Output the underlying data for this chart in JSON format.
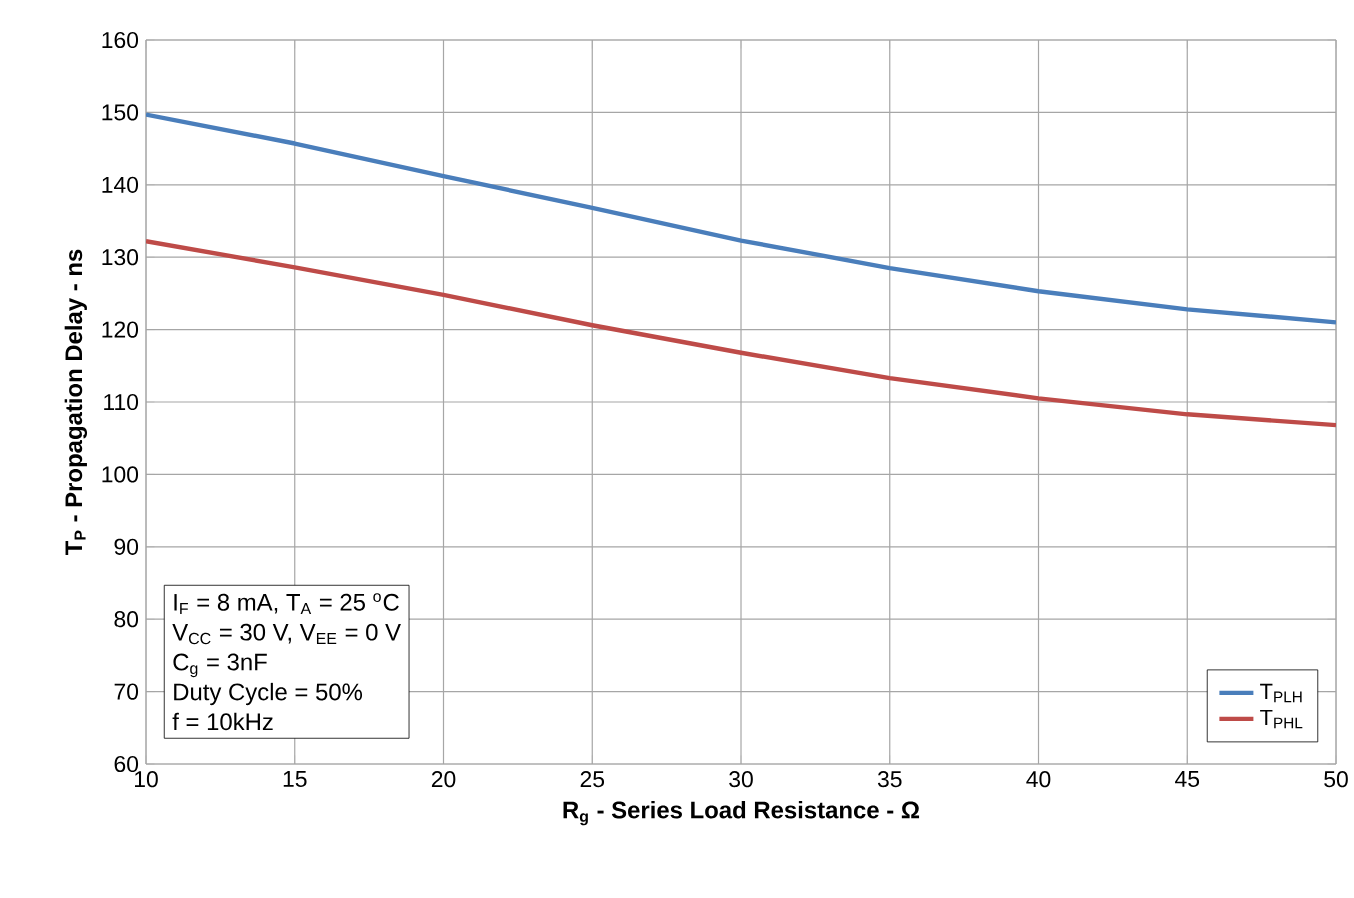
{
  "chart_data": {
    "type": "line",
    "xlabel": "R$_{g}$ - Series Load Resistance - Ω",
    "ylabel": "T$_{P}$ - Propagation Delay - ns",
    "x": [
      10,
      15,
      20,
      25,
      30,
      35,
      40,
      45,
      50
    ],
    "series": [
      {
        "name": "T$_{PLH}$",
        "color": "#4a7ebb",
        "values": [
          149.7,
          145.7,
          141.2,
          136.8,
          132.3,
          128.5,
          125.3,
          122.8,
          121.0
        ]
      },
      {
        "name": "T$_{PHL}$",
        "color": "#be4b48",
        "values": [
          132.2,
          128.6,
          124.8,
          120.6,
          116.8,
          113.3,
          110.5,
          108.3,
          106.8
        ]
      }
    ],
    "xlim": [
      10,
      50
    ],
    "xticks": [
      10,
      15,
      20,
      25,
      30,
      35,
      40,
      45,
      50
    ],
    "ylim": [
      60,
      160
    ],
    "yticks": [
      60,
      70,
      80,
      90,
      100,
      110,
      120,
      130,
      140,
      150,
      160
    ],
    "grid": true,
    "legend": "bottom right",
    "marker": "none",
    "line_style": "solid",
    "annotations": [
      "I$_{F}$ = 8 mA, T$_{A}$ = 25 $^{o}$C",
      "V$_{CC}$ = 30 V, V$_{EE}$ = 0 V",
      "C$_{g}$ = 3nF",
      "Duty Cycle = 50%",
      "f = 10kHz"
    ]
  }
}
